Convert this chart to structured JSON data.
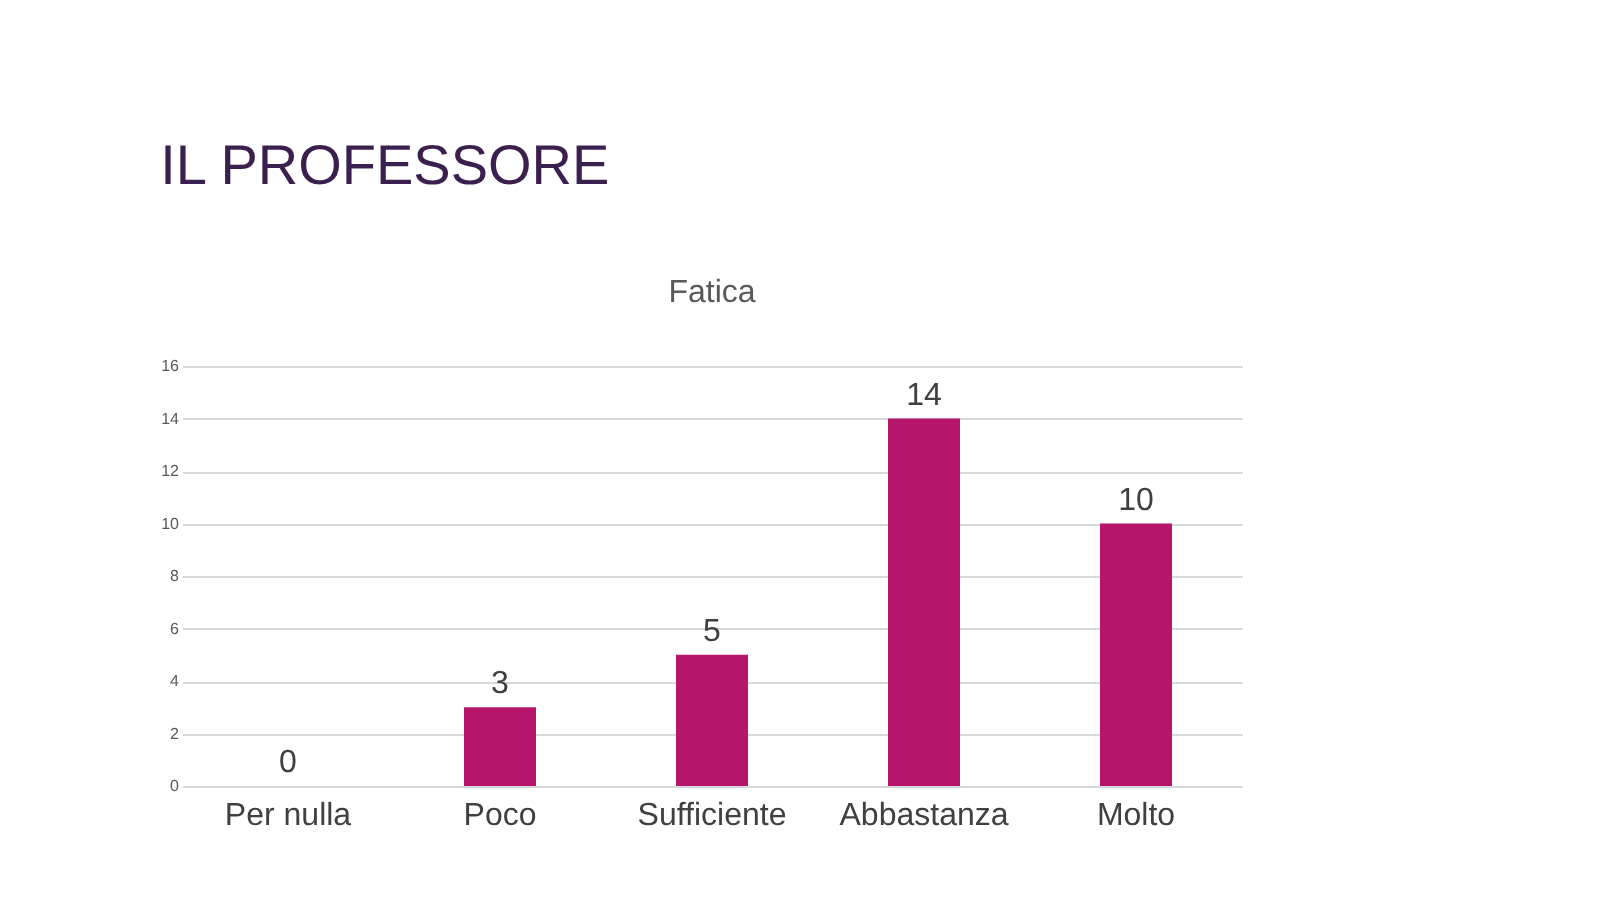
{
  "chart_data": {
    "type": "bar",
    "title": "IL PROFESSORE",
    "subtitle": "Fatica",
    "categories": [
      "Per nulla",
      "Poco",
      "Sufficiente",
      "Abbastanza",
      "Molto"
    ],
    "values": [
      0,
      3,
      5,
      14,
      10
    ],
    "color": "#b5166b",
    "ylim": [
      0,
      16
    ],
    "yticks": [
      0,
      2,
      4,
      6,
      8,
      10,
      12,
      14,
      16
    ],
    "grid": "y",
    "data_labels": true
  }
}
